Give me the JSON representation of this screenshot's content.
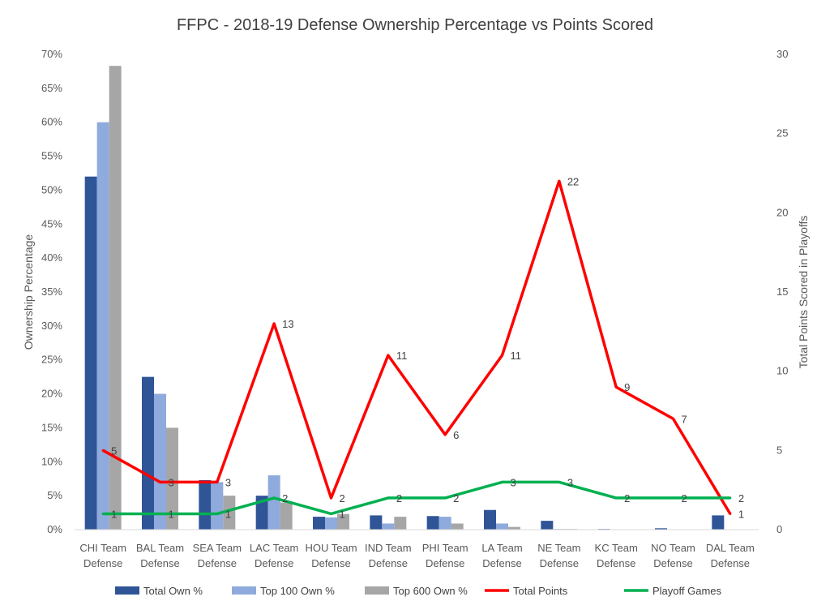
{
  "chart_data": {
    "type": "bar",
    "title": "FFPC - 2018-19 Defense Ownership Percentage vs Points Scored",
    "categories": [
      [
        "CHI Team",
        "Defense"
      ],
      [
        "BAL Team",
        "Defense"
      ],
      [
        "SEA Team",
        "Defense"
      ],
      [
        "LAC Team",
        "Defense"
      ],
      [
        "HOU Team",
        "Defense"
      ],
      [
        "IND Team",
        "Defense"
      ],
      [
        "PHI Team",
        "Defense"
      ],
      [
        "LA Team",
        "Defense"
      ],
      [
        "NE Team",
        "Defense"
      ],
      [
        "KC Team",
        "Defense"
      ],
      [
        "NO Team",
        "Defense"
      ],
      [
        "DAL Team",
        "Defense"
      ]
    ],
    "ylabel": "Ownership Percentage",
    "y2label": "Total Points Scored in Playoffs",
    "ylim": [
      0,
      70
    ],
    "y_ticks": [
      "0%",
      "5%",
      "10%",
      "15%",
      "20%",
      "25%",
      "30%",
      "35%",
      "40%",
      "45%",
      "50%",
      "55%",
      "60%",
      "65%",
      "70%"
    ],
    "y2lim": [
      0,
      30
    ],
    "y2_ticks": [
      "0",
      "5",
      "10",
      "15",
      "20",
      "25",
      "30"
    ],
    "grid": false,
    "legend_position": "bottom",
    "series": [
      {
        "name": "Total Own %",
        "type": "bar",
        "axis": "left",
        "color": "#2F5597",
        "values": [
          52,
          22.5,
          7.3,
          5,
          1.9,
          2.1,
          2,
          2.9,
          1.3,
          0.1,
          0.2,
          2.1
        ]
      },
      {
        "name": "Top 100 Own %",
        "type": "bar",
        "axis": "left",
        "color": "#8FAADC",
        "values": [
          60,
          20,
          7,
          8,
          1.8,
          0.9,
          1.9,
          0.9,
          0.1,
          0,
          0,
          0
        ]
      },
      {
        "name": "Top 600 Own %",
        "type": "bar",
        "axis": "left",
        "color": "#A6A6A6",
        "values": [
          68.3,
          15,
          5,
          4,
          2.3,
          1.9,
          0.9,
          0.4,
          0.1,
          0,
          0,
          0
        ]
      },
      {
        "name": "Total Points",
        "type": "line",
        "axis": "right",
        "color": "#FF0000",
        "values": [
          5,
          3,
          3,
          13,
          2,
          11,
          6,
          11,
          22,
          9,
          7,
          1
        ],
        "labels": [
          "5",
          "3",
          "3",
          "13",
          "2",
          "11",
          "6",
          "11",
          "22",
          "9",
          "7",
          "1"
        ]
      },
      {
        "name": "Playoff Games",
        "type": "line",
        "axis": "right",
        "color": "#00B050",
        "values": [
          1,
          1,
          1,
          2,
          1,
          2,
          2,
          3,
          3,
          2,
          2,
          2
        ],
        "labels": [
          "1",
          "1",
          "1",
          "2",
          "1",
          "2",
          "2",
          "3",
          "3",
          "2",
          "2",
          "2"
        ]
      }
    ]
  }
}
